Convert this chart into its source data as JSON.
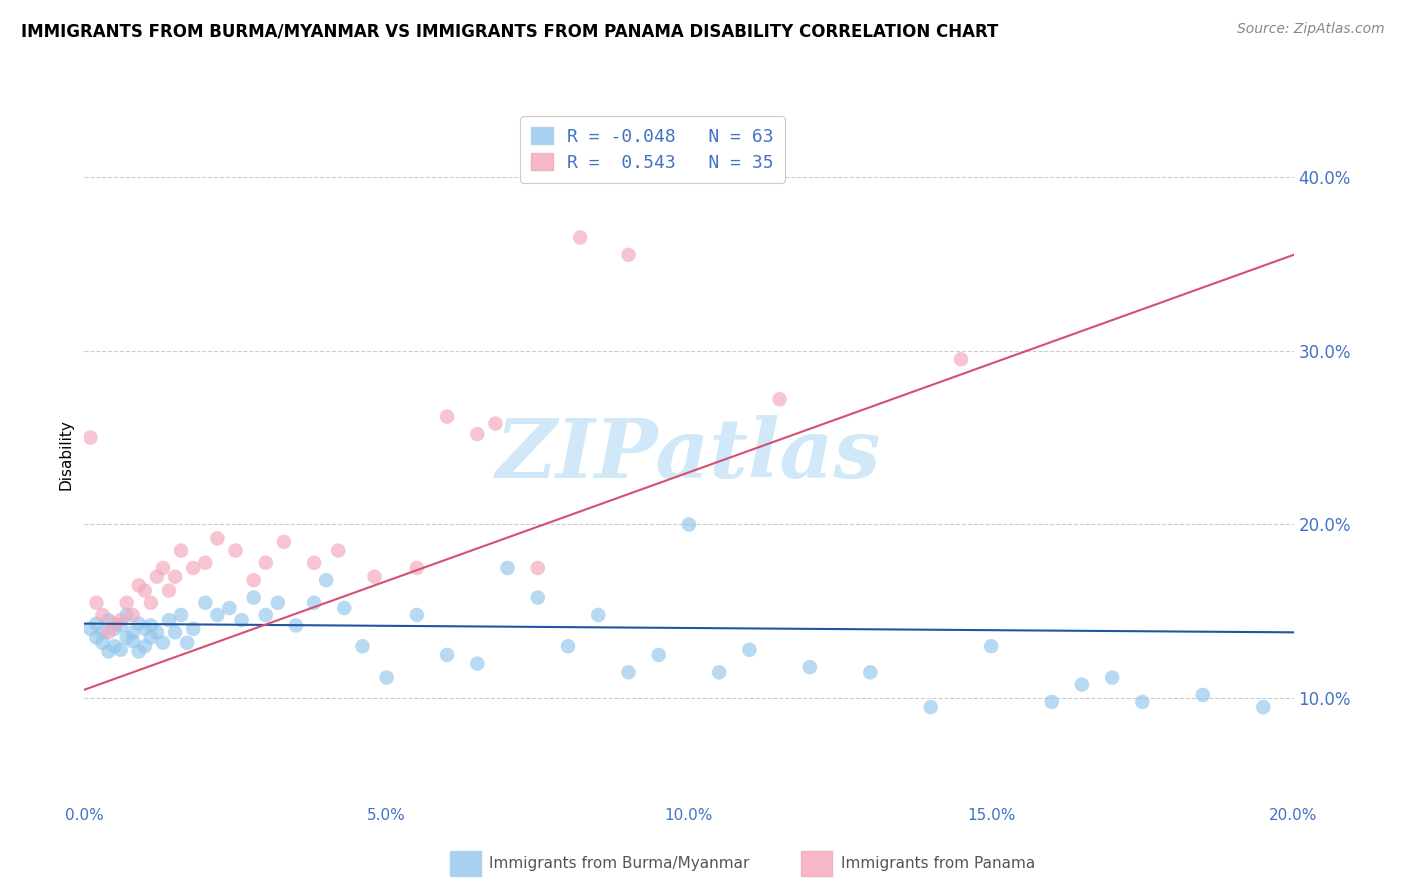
{
  "title": "IMMIGRANTS FROM BURMA/MYANMAR VS IMMIGRANTS FROM PANAMA DISABILITY CORRELATION CHART",
  "source": "Source: ZipAtlas.com",
  "ylabel": "Disability",
  "xlabel_blue": "Immigrants from Burma/Myanmar",
  "xlabel_pink": "Immigrants from Panama",
  "xlim": [
    0.0,
    0.2
  ],
  "ylim": [
    0.04,
    0.44
  ],
  "xticks": [
    0.0,
    0.05,
    0.1,
    0.15,
    0.2
  ],
  "yticks": [
    0.1,
    0.2,
    0.3,
    0.4
  ],
  "blue_R": "-0.048",
  "blue_N": "63",
  "pink_R": "0.543",
  "pink_N": "35",
  "blue_color": "#92C5EC",
  "pink_color": "#F4A7BA",
  "blue_line_color": "#2155A0",
  "pink_line_color": "#D45070",
  "watermark_color": "#D0E8F8",
  "blue_scatter_x": [
    0.001,
    0.002,
    0.002,
    0.003,
    0.003,
    0.004,
    0.004,
    0.005,
    0.005,
    0.006,
    0.006,
    0.007,
    0.007,
    0.008,
    0.008,
    0.009,
    0.009,
    0.01,
    0.01,
    0.011,
    0.011,
    0.012,
    0.013,
    0.014,
    0.015,
    0.016,
    0.017,
    0.018,
    0.02,
    0.022,
    0.024,
    0.026,
    0.028,
    0.03,
    0.032,
    0.035,
    0.038,
    0.04,
    0.043,
    0.046,
    0.05,
    0.055,
    0.06,
    0.065,
    0.07,
    0.075,
    0.08,
    0.085,
    0.09,
    0.095,
    0.1,
    0.105,
    0.11,
    0.12,
    0.13,
    0.14,
    0.15,
    0.16,
    0.165,
    0.17,
    0.175,
    0.185,
    0.195
  ],
  "blue_scatter_y": [
    0.14,
    0.135,
    0.143,
    0.132,
    0.138,
    0.127,
    0.145,
    0.13,
    0.14,
    0.128,
    0.142,
    0.135,
    0.148,
    0.133,
    0.138,
    0.127,
    0.143,
    0.13,
    0.14,
    0.135,
    0.142,
    0.138,
    0.132,
    0.145,
    0.138,
    0.148,
    0.132,
    0.14,
    0.155,
    0.148,
    0.152,
    0.145,
    0.158,
    0.148,
    0.155,
    0.142,
    0.155,
    0.168,
    0.152,
    0.13,
    0.112,
    0.148,
    0.125,
    0.12,
    0.175,
    0.158,
    0.13,
    0.148,
    0.115,
    0.125,
    0.2,
    0.115,
    0.128,
    0.118,
    0.115,
    0.095,
    0.13,
    0.098,
    0.108,
    0.112,
    0.098,
    0.102,
    0.095
  ],
  "pink_scatter_x": [
    0.001,
    0.002,
    0.003,
    0.004,
    0.005,
    0.006,
    0.007,
    0.008,
    0.009,
    0.01,
    0.011,
    0.012,
    0.013,
    0.014,
    0.015,
    0.016,
    0.018,
    0.02,
    0.022,
    0.025,
    0.028,
    0.03,
    0.033,
    0.038,
    0.042,
    0.048,
    0.055,
    0.06,
    0.065,
    0.068,
    0.075,
    0.082,
    0.09,
    0.115,
    0.145
  ],
  "pink_scatter_y": [
    0.25,
    0.155,
    0.148,
    0.138,
    0.143,
    0.145,
    0.155,
    0.148,
    0.165,
    0.162,
    0.155,
    0.17,
    0.175,
    0.162,
    0.17,
    0.185,
    0.175,
    0.178,
    0.192,
    0.185,
    0.168,
    0.178,
    0.19,
    0.178,
    0.185,
    0.17,
    0.175,
    0.262,
    0.252,
    0.258,
    0.175,
    0.365,
    0.355,
    0.272,
    0.295
  ],
  "blue_line_x": [
    0.0,
    0.2
  ],
  "blue_line_y": [
    0.143,
    0.138
  ],
  "pink_line_x": [
    0.0,
    0.2
  ],
  "pink_line_y": [
    0.105,
    0.355
  ],
  "background_color": "#FFFFFF",
  "grid_color": "#CCCCCC"
}
